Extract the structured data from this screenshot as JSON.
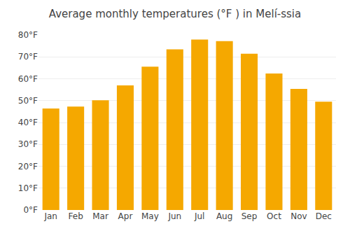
{
  "chart_data": {
    "type": "bar",
    "title": "Average monthly temperatures (°F ) in Melí-ssia",
    "categories": [
      "Jan",
      "Feb",
      "Mar",
      "Apr",
      "May",
      "Jun",
      "Jul",
      "Aug",
      "Sep",
      "Oct",
      "Nov",
      "Dec"
    ],
    "values": [
      46.4,
      47.3,
      50.2,
      57.0,
      65.5,
      73.4,
      77.9,
      77.2,
      71.4,
      62.4,
      55.4,
      49.5
    ],
    "color": "#F5A800",
    "ylim": [
      0,
      80
    ],
    "yticks": [
      {
        "value": 0,
        "label": "0°F"
      },
      {
        "value": 10,
        "label": "10°F"
      },
      {
        "value": 20,
        "label": "20°F"
      },
      {
        "value": 30,
        "label": "30°F"
      },
      {
        "value": 40,
        "label": "40°F"
      },
      {
        "value": 50,
        "label": "50°F"
      },
      {
        "value": 60,
        "label": "60°F"
      },
      {
        "value": 70,
        "label": "70°F"
      },
      {
        "value": 80,
        "label": "80°F"
      }
    ],
    "grid": true
  }
}
